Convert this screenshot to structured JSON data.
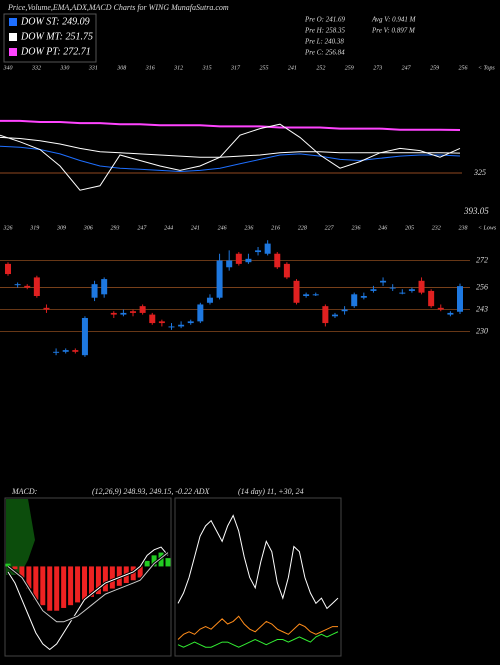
{
  "chart_data": [
    {
      "type": "line",
      "title": "Price,Volume,EMA,ADX,MACD Charts for WING MunafaSutra.com",
      "info": [
        "Pre O: 241.69",
        "Pre H: 258.35",
        "Pre L: 240.38",
        "Pre C: 256.84",
        "Avg V: 0.941 M",
        "Pre V: 0.897 M"
      ],
      "tops": [
        "340",
        "332",
        "330",
        "331",
        "308",
        "316",
        "312",
        "315",
        "317",
        "255",
        "241",
        "252",
        "259",
        "273",
        "247",
        "259",
        "256"
      ],
      "tops_label": "< Tops",
      "annotations": [
        "325",
        "393.05"
      ],
      "ylim": [
        200,
        300
      ],
      "series": [
        {
          "name": "DOW ST: 249.09",
          "color": "#1e6fff",
          "values": [
            258,
            257,
            255,
            251,
            245,
            240,
            238,
            237,
            236,
            235,
            236,
            238,
            242,
            246,
            250,
            251,
            249,
            246,
            245,
            247,
            249,
            250,
            250,
            249.09
          ]
        },
        {
          "name": "DOW MT: 251.75",
          "color": "#ffffff",
          "values": [
            266,
            265,
            263,
            260,
            256,
            253,
            252,
            251,
            250,
            249,
            248,
            248,
            249,
            250,
            252,
            253,
            253,
            252,
            252,
            252,
            252,
            252,
            252,
            251.75
          ]
        },
        {
          "name": "DOW PT: 272.71",
          "color": "#ff44ff",
          "values": [
            281,
            281,
            280,
            280,
            279,
            279,
            278,
            278,
            277,
            277,
            277,
            276,
            276,
            276,
            275,
            275,
            275,
            274,
            274,
            274,
            273,
            273,
            273,
            272.71
          ]
        },
        {
          "color": "#ffffff",
          "values": [
            268,
            262,
            255,
            240,
            218,
            222,
            250,
            245,
            240,
            236,
            240,
            248,
            268,
            274,
            278,
            266,
            250,
            238,
            244,
            252,
            256,
            254,
            248,
            256
          ]
        }
      ]
    },
    {
      "type": "candlestick",
      "lows": [
        "326",
        "319",
        "309",
        "306",
        "293",
        "247",
        "244",
        "241",
        "246",
        "236",
        "216",
        "228",
        "227",
        "236",
        "246",
        "205",
        "232",
        "238"
      ],
      "lows_label": "< Lows",
      "up_color": "#1e78e0",
      "down_color": "#e02020",
      "grid": true,
      "ylim": [
        154,
        293
      ],
      "yticks": [
        230,
        243,
        256,
        272
      ],
      "open": [
        270,
        258,
        257,
        262,
        244,
        218,
        218,
        219,
        216,
        250,
        252,
        241,
        240,
        242,
        245,
        240,
        236,
        233,
        233,
        235,
        236,
        247,
        250,
        268,
        276,
        271,
        277,
        276,
        276,
        270,
        260,
        251,
        252,
        245,
        239,
        242,
        245,
        250,
        254,
        259,
        256,
        253,
        254,
        260,
        254,
        244,
        240,
        241.69
      ],
      "high": [
        271,
        259,
        258,
        263,
        246,
        220,
        220,
        220,
        239,
        260,
        262,
        242,
        243,
        243,
        246,
        241,
        237,
        235,
        236,
        237,
        247,
        252,
        276,
        278,
        277,
        276,
        280,
        284,
        277,
        271,
        261,
        253,
        253,
        246,
        241,
        245,
        253,
        253,
        257,
        262,
        258,
        255,
        256,
        262,
        255,
        246,
        242,
        258.35
      ],
      "low": [
        263,
        256,
        255,
        250,
        241,
        216,
        217,
        217,
        215,
        248,
        250,
        238,
        239,
        239,
        240,
        234,
        233,
        231,
        232,
        234,
        235,
        246,
        249,
        266,
        269,
        270,
        275,
        275,
        267,
        261,
        246,
        250,
        251,
        233,
        238,
        240,
        244,
        249,
        253,
        257,
        254,
        252,
        253,
        252,
        244,
        242,
        239,
        240.38
      ],
      "close": [
        264,
        258,
        256,
        251,
        243,
        218,
        219,
        218,
        238,
        258,
        261,
        240,
        241,
        241,
        241,
        235,
        235,
        233,
        234,
        236,
        246,
        250,
        272,
        272,
        270,
        273,
        278,
        282,
        268,
        262,
        247,
        252,
        252,
        235,
        240,
        243,
        252,
        251,
        255,
        260,
        256,
        253,
        255,
        253,
        245,
        243,
        241,
        256.84
      ]
    },
    {
      "type": "macd",
      "title": "MACD:",
      "subtitle": "(12,26,9) 248.93, 249.15, -0.22 ADX",
      "ylim": [
        -16,
        12
      ],
      "histogram": [
        0.5,
        -0.5,
        -2,
        -4,
        -6,
        -7,
        -8,
        -8,
        -7.5,
        -7,
        -6.5,
        -6,
        -5.5,
        -5,
        -4.5,
        -4,
        -3.5,
        -3,
        -2.5,
        -2,
        1,
        2,
        2.5,
        1.5
      ],
      "series": [
        {
          "color": "#ffffff",
          "values": [
            -1,
            -3,
            -6,
            -9,
            -12,
            -14,
            -15,
            -14,
            -12,
            -10,
            -8,
            -6,
            -5,
            -4,
            -3,
            -2.5,
            -2,
            -1.5,
            -1,
            0,
            2,
            3,
            3.5,
            2
          ]
        },
        {
          "color": "#cccccc",
          "values": [
            0,
            -1,
            -2,
            -4,
            -6,
            -8,
            -9,
            -10,
            -10,
            -9.5,
            -9,
            -8,
            -7,
            -6,
            -5,
            -4.5,
            -4,
            -3.5,
            -3,
            -2.5,
            -1,
            0.5,
            1.5,
            2.5
          ]
        }
      ]
    },
    {
      "type": "line",
      "title": "(14 day) 11, +30, 24",
      "ylim": [
        0,
        60
      ],
      "series": [
        {
          "color": "#ffffff",
          "values": [
            20,
            24,
            30,
            38,
            46,
            50,
            52,
            48,
            44,
            50,
            54,
            48,
            38,
            30,
            26,
            36,
            44,
            40,
            28,
            22,
            30,
            42,
            40,
            30,
            24,
            20,
            22,
            18,
            20,
            22
          ]
        },
        {
          "color": "#ff8c1a",
          "values": [
            6,
            8,
            9,
            8,
            10,
            11,
            10,
            12,
            14,
            12,
            13,
            15,
            12,
            10,
            9,
            11,
            13,
            12,
            10,
            9,
            8,
            10,
            12,
            11,
            9,
            8,
            9,
            10,
            11,
            11
          ]
        },
        {
          "color": "#33ee33",
          "values": [
            4,
            3,
            4,
            5,
            4,
            3,
            3,
            4,
            5,
            5,
            4,
            3,
            4,
            5,
            6,
            5,
            4,
            5,
            6,
            6,
            5,
            6,
            7,
            6,
            5,
            7,
            8,
            7,
            8,
            9
          ]
        }
      ]
    }
  ]
}
